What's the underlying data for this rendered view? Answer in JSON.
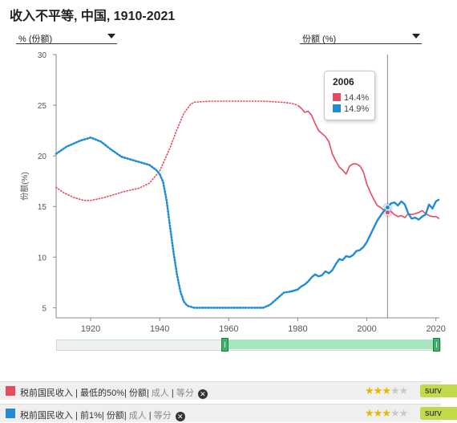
{
  "title": "收入不平等, 中国, 1910-2021",
  "selectors": {
    "left": "% (份额)",
    "right": "份额 (%)"
  },
  "tooltip": {
    "year": "2006",
    "values": [
      "14.4%",
      "14.9%"
    ]
  },
  "legend": [
    {
      "name": "税前国民收入",
      "parts": [
        "最低的50%",
        "份额"
      ],
      "dim_parts": [
        "成人",
        "等分"
      ],
      "color": "#e84a5f",
      "stars": 3,
      "stars_total": 5,
      "tag": "surv"
    },
    {
      "name": "税前国民收入",
      "parts": [
        "前1%",
        "份额"
      ],
      "dim_parts": [
        "成人",
        "等分"
      ],
      "color": "#1f8dd6",
      "stars": 3,
      "stars_total": 5,
      "tag": "surv"
    }
  ],
  "chart_data": {
    "type": "line",
    "title": "收入不平等, 中国, 1910-2021",
    "ylabel": "份额(%)",
    "xlabel": "",
    "xlim": [
      1910,
      2021
    ],
    "ylim": [
      4,
      30
    ],
    "yticks": [
      5,
      10,
      15,
      20,
      25,
      30
    ],
    "xticks": [
      1920,
      1940,
      1960,
      1980,
      2000,
      2020
    ],
    "grid": true,
    "highlight_x": 2006,
    "series": [
      {
        "key": "bottom50",
        "color": "#e84a5f",
        "points": [
          [
            1910,
            16.9
          ],
          [
            1912,
            16.4
          ],
          [
            1915,
            15.9
          ],
          [
            1918,
            15.6
          ],
          [
            1920,
            15.6
          ],
          [
            1923,
            15.8
          ],
          [
            1926,
            16.1
          ],
          [
            1930,
            16.5
          ],
          [
            1934,
            16.8
          ],
          [
            1937,
            17.3
          ],
          [
            1940,
            18.5
          ],
          [
            1943,
            20.8
          ],
          [
            1945,
            22.6
          ],
          [
            1947,
            24.2
          ],
          [
            1949,
            25.1
          ],
          [
            1950,
            25.3
          ],
          [
            1955,
            25.4
          ],
          [
            1960,
            25.4
          ],
          [
            1965,
            25.4
          ],
          [
            1970,
            25.4
          ],
          [
            1975,
            25.3
          ],
          [
            1978,
            25.2
          ],
          [
            1980,
            25.0
          ],
          [
            1981,
            24.7
          ],
          [
            1982,
            24.3
          ],
          [
            1983,
            24.4
          ],
          [
            1984,
            24.0
          ],
          [
            1985,
            23.2
          ],
          [
            1986,
            22.5
          ],
          [
            1987,
            22.2
          ],
          [
            1988,
            21.9
          ],
          [
            1989,
            21.4
          ],
          [
            1990,
            20.2
          ],
          [
            1991,
            19.5
          ],
          [
            1992,
            18.9
          ],
          [
            1993,
            18.6
          ],
          [
            1994,
            18.2
          ],
          [
            1995,
            19.0
          ],
          [
            1996,
            19.2
          ],
          [
            1997,
            19.2
          ],
          [
            1998,
            19.0
          ],
          [
            1999,
            18.4
          ],
          [
            2000,
            17.2
          ],
          [
            2001,
            16.4
          ],
          [
            2002,
            15.7
          ],
          [
            2003,
            15.1
          ],
          [
            2004,
            14.9
          ],
          [
            2005,
            14.6
          ],
          [
            2006,
            14.4
          ],
          [
            2007,
            14.5
          ],
          [
            2008,
            14.2
          ],
          [
            2009,
            14.0
          ],
          [
            2010,
            14.1
          ],
          [
            2011,
            13.9
          ],
          [
            2012,
            14.3
          ],
          [
            2013,
            14.2
          ],
          [
            2014,
            14.3
          ],
          [
            2015,
            14.4
          ],
          [
            2016,
            14.6
          ],
          [
            2017,
            14.3
          ],
          [
            2018,
            14.1
          ],
          [
            2019,
            14.0
          ],
          [
            2020,
            14.0
          ],
          [
            2021,
            13.8
          ]
        ]
      },
      {
        "key": "top1",
        "color": "#1f8dd6",
        "points": [
          [
            1910,
            20.2
          ],
          [
            1913,
            20.9
          ],
          [
            1917,
            21.5
          ],
          [
            1920,
            21.8
          ],
          [
            1923,
            21.4
          ],
          [
            1926,
            20.6
          ],
          [
            1929,
            19.9
          ],
          [
            1933,
            19.5
          ],
          [
            1937,
            19.1
          ],
          [
            1939,
            18.6
          ],
          [
            1940,
            18.2
          ],
          [
            1941,
            17.4
          ],
          [
            1942,
            15.6
          ],
          [
            1943,
            13.0
          ],
          [
            1944,
            10.5
          ],
          [
            1945,
            8.3
          ],
          [
            1946,
            6.6
          ],
          [
            1947,
            5.6
          ],
          [
            1948,
            5.2
          ],
          [
            1950,
            5.0
          ],
          [
            1955,
            5.0
          ],
          [
            1960,
            5.0
          ],
          [
            1965,
            5.0
          ],
          [
            1970,
            5.0
          ],
          [
            1972,
            5.3
          ],
          [
            1974,
            5.9
          ],
          [
            1976,
            6.5
          ],
          [
            1978,
            6.6
          ],
          [
            1980,
            6.8
          ],
          [
            1981,
            7.1
          ],
          [
            1982,
            7.3
          ],
          [
            1983,
            7.6
          ],
          [
            1984,
            8.0
          ],
          [
            1985,
            8.3
          ],
          [
            1986,
            8.1
          ],
          [
            1987,
            8.2
          ],
          [
            1988,
            8.6
          ],
          [
            1989,
            8.4
          ],
          [
            1990,
            8.7
          ],
          [
            1991,
            9.3
          ],
          [
            1992,
            9.8
          ],
          [
            1993,
            9.7
          ],
          [
            1994,
            10.1
          ],
          [
            1995,
            10.0
          ],
          [
            1996,
            10.2
          ],
          [
            1997,
            10.6
          ],
          [
            1998,
            10.7
          ],
          [
            1999,
            11.0
          ],
          [
            2000,
            11.5
          ],
          [
            2001,
            12.2
          ],
          [
            2002,
            12.9
          ],
          [
            2003,
            13.6
          ],
          [
            2004,
            14.1
          ],
          [
            2005,
            14.6
          ],
          [
            2006,
            14.9
          ],
          [
            2007,
            15.3
          ],
          [
            2008,
            15.4
          ],
          [
            2009,
            15.1
          ],
          [
            2010,
            15.5
          ],
          [
            2011,
            15.2
          ],
          [
            2012,
            14.3
          ],
          [
            2013,
            13.8
          ],
          [
            2014,
            13.9
          ],
          [
            2015,
            13.7
          ],
          [
            2016,
            14.0
          ],
          [
            2017,
            14.2
          ],
          [
            2018,
            15.2
          ],
          [
            2019,
            14.8
          ],
          [
            2020,
            15.5
          ],
          [
            2021,
            15.7
          ]
        ]
      }
    ]
  }
}
